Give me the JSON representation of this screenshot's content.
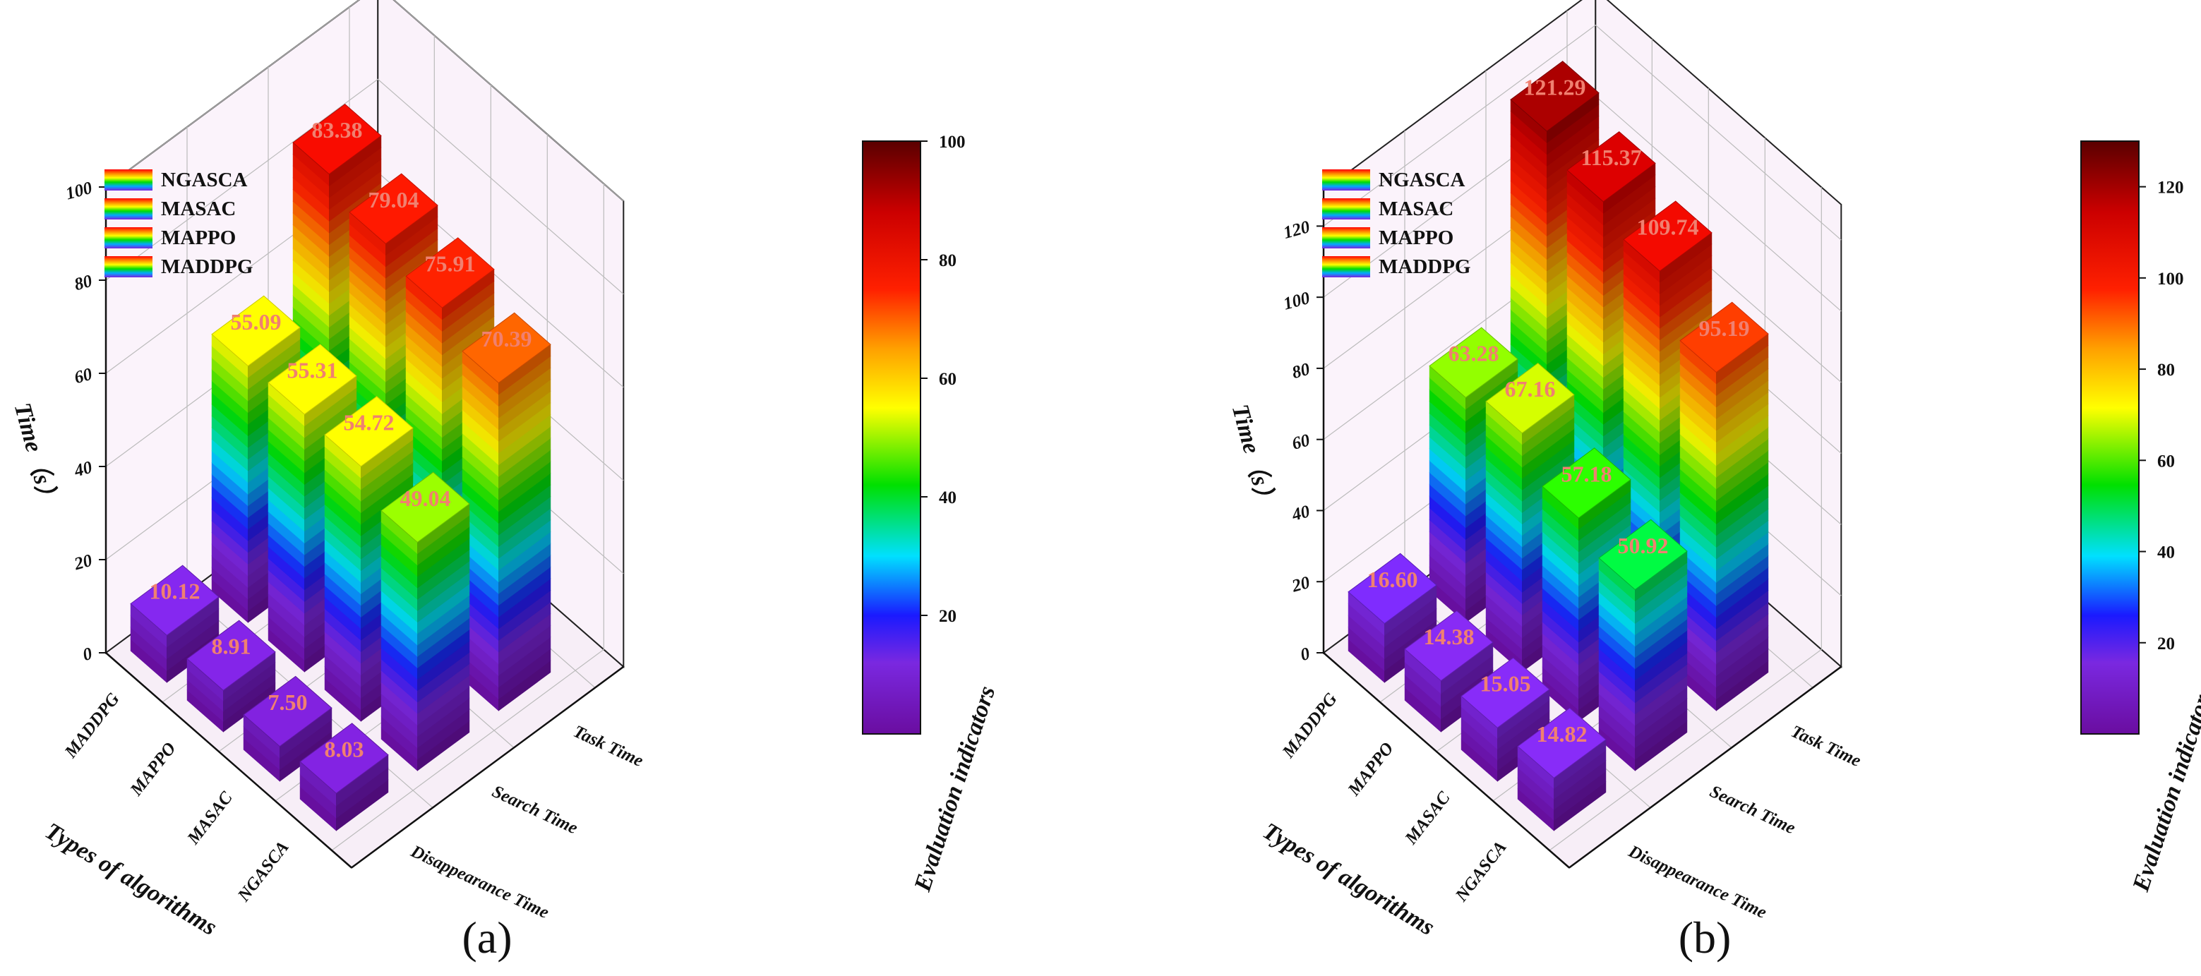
{
  "chart_data": [
    {
      "type": "bar3d",
      "panel_label": "(a)",
      "zlabel": "Time（s）",
      "xlabel": "Types of algorithms",
      "ylabel": "Evaluation indicators",
      "x_categories": [
        "MADDPG",
        "MAPPO",
        "MASAC",
        "NGASCA"
      ],
      "y_categories": [
        "Disappearance Time",
        "Search Time",
        "Task Time"
      ],
      "zlim": [
        0,
        100
      ],
      "z_ticks": [
        "0",
        "20",
        "40",
        "60",
        "80",
        "100"
      ],
      "colorbar": {
        "min": 0,
        "max": 100,
        "ticks": [
          "20",
          "40",
          "60",
          "80",
          "100"
        ]
      },
      "legend": [
        "NGASCA",
        "MASAC",
        "MAPPO",
        "MADDPG"
      ],
      "series": [
        {
          "name": "Disappearance Time",
          "values": [
            10.12,
            8.91,
            7.5,
            8.03
          ],
          "labels": [
            "10.12",
            "8.91",
            "7.50",
            "8.03"
          ]
        },
        {
          "name": "Search Time",
          "values": [
            55.09,
            55.31,
            54.72,
            49.04
          ],
          "labels": [
            "55.09",
            "55.31",
            "54.72",
            "49.04"
          ]
        },
        {
          "name": "Task Time",
          "values": [
            83.38,
            79.04,
            75.91,
            70.39
          ],
          "labels": [
            "83.38",
            "79.04",
            "75.91",
            "70.39"
          ]
        }
      ]
    },
    {
      "type": "bar3d",
      "panel_label": "(b)",
      "zlabel": "Time（s）",
      "xlabel": "Types of algorithms",
      "ylabel": "Evaluation indicators",
      "x_categories": [
        "MADDPG",
        "MAPPO",
        "MASAC",
        "NGASCA"
      ],
      "y_categories": [
        "Disappearance Time",
        "Search Time",
        "Task Time"
      ],
      "zlim": [
        0,
        130
      ],
      "z_ticks": [
        "0",
        "20",
        "40",
        "60",
        "80",
        "100",
        "120"
      ],
      "colorbar": {
        "min": 0,
        "max": 130,
        "ticks": [
          "20",
          "40",
          "60",
          "80",
          "100",
          "120"
        ]
      },
      "legend": [
        "NGASCA",
        "MASAC",
        "MAPPO",
        "MADDPG"
      ],
      "series": [
        {
          "name": "Disappearance Time",
          "values": [
            16.6,
            14.38,
            15.05,
            14.82
          ],
          "labels": [
            "16.60",
            "14.38",
            "15.05",
            "14.82"
          ]
        },
        {
          "name": "Search Time",
          "values": [
            63.28,
            67.16,
            57.18,
            50.92
          ],
          "labels": [
            "63.28",
            "67.16",
            "57.18",
            "50.92"
          ]
        },
        {
          "name": "Task Time",
          "values": [
            121.29,
            115.37,
            109.74,
            95.19
          ],
          "labels": [
            "121.29",
            "115.37",
            "109.74",
            "95.19"
          ]
        }
      ]
    }
  ]
}
